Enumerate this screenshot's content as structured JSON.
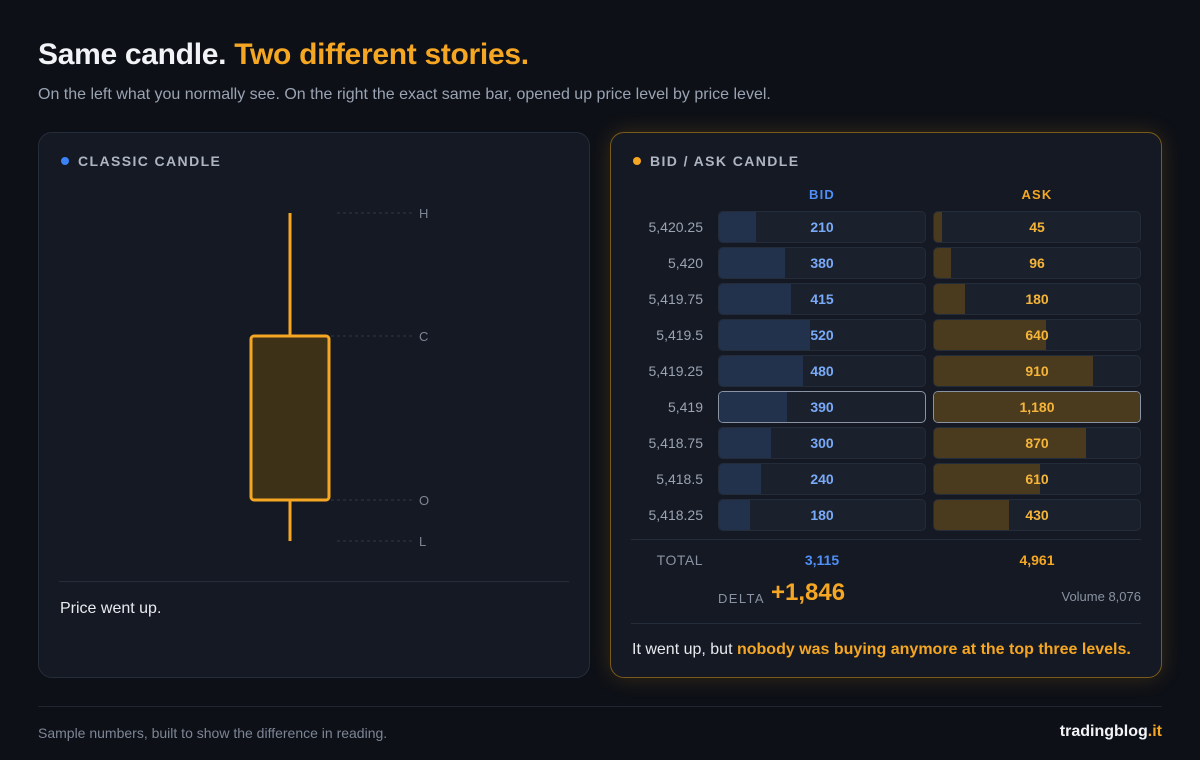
{
  "header": {
    "title_main": "Same candle.",
    "title_accent": "Two different stories.",
    "subtitle": "On the left what you normally see. On the right the exact same bar, opened up price level by price level."
  },
  "classic": {
    "heading": "CLASSIC CANDLE",
    "labels": {
      "high": "H",
      "close": "C",
      "open": "O",
      "low": "L"
    },
    "caption": "Price went up.",
    "colors": {
      "body_fill": "#3d3218",
      "body_stroke": "#f5a623",
      "wick": "#f5a623"
    }
  },
  "bidask": {
    "heading": "BID / ASK CANDLE",
    "bid_header": "BID",
    "ask_header": "ASK",
    "max_value": 1180,
    "rows": [
      {
        "price": "5,420.25",
        "bid": "210",
        "ask": "45",
        "bid_n": 210,
        "ask_n": 45
      },
      {
        "price": "5,420",
        "bid": "380",
        "ask": "96",
        "bid_n": 380,
        "ask_n": 96
      },
      {
        "price": "5,419.75",
        "bid": "415",
        "ask": "180",
        "bid_n": 415,
        "ask_n": 180
      },
      {
        "price": "5,419.5",
        "bid": "520",
        "ask": "640",
        "bid_n": 520,
        "ask_n": 640
      },
      {
        "price": "5,419.25",
        "bid": "480",
        "ask": "910",
        "bid_n": 480,
        "ask_n": 910
      },
      {
        "price": "5,419",
        "bid": "390",
        "ask": "1,180",
        "bid_n": 390,
        "ask_n": 1180,
        "highlight": true
      },
      {
        "price": "5,418.75",
        "bid": "300",
        "ask": "870",
        "bid_n": 300,
        "ask_n": 870
      },
      {
        "price": "5,418.5",
        "bid": "240",
        "ask": "610",
        "bid_n": 240,
        "ask_n": 610
      },
      {
        "price": "5,418.25",
        "bid": "180",
        "ask": "430",
        "bid_n": 180,
        "ask_n": 430
      }
    ],
    "total_label": "TOTAL",
    "total_bid": "3,115",
    "total_ask": "4,961",
    "delta_label": "DELTA",
    "delta_value": "+1,846",
    "volume": "Volume 8,076",
    "caption_plain": "It went up, but",
    "caption_highlight": "nobody was buying anymore at the top three levels."
  },
  "footer": {
    "note": "Sample numbers, built to show the difference in reading.",
    "brand_main": "tradingblog",
    "brand_accent": ".it"
  },
  "colors": {
    "accent": "#f5a623",
    "bid_blue": "#4f8ff7",
    "background": "#0d1017",
    "panel": "#141923"
  }
}
